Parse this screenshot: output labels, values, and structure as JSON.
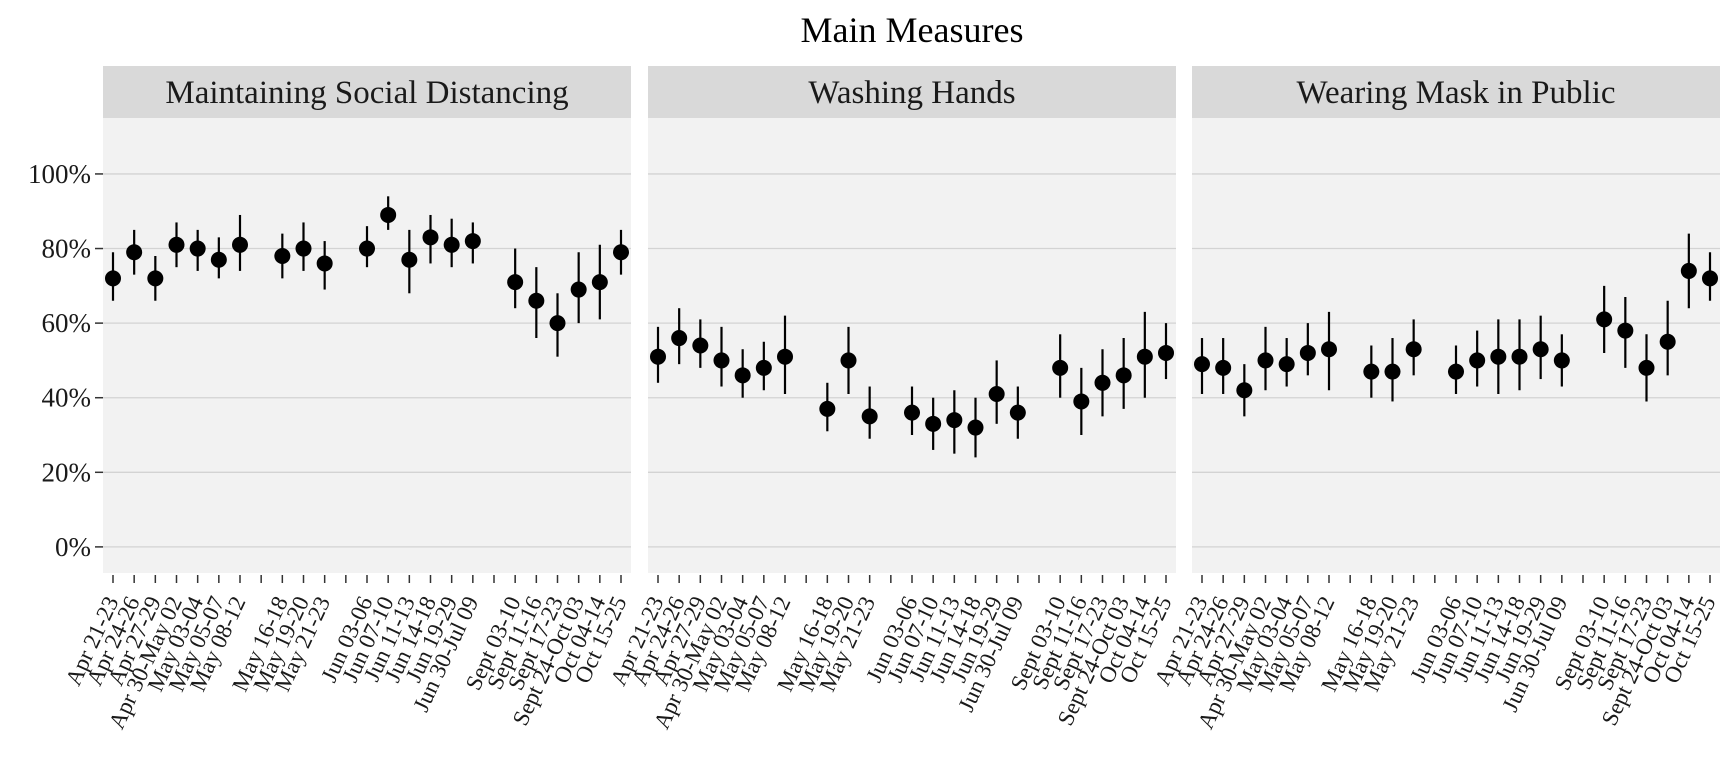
{
  "chart_data": {
    "type": "scatter",
    "title": "Main Measures",
    "xlabel": "",
    "ylabel": "",
    "ylim": [
      -0.07,
      1.15
    ],
    "y_ticks": [
      0,
      0.2,
      0.4,
      0.6,
      0.8,
      1.0
    ],
    "y_tick_labels": [
      "0%",
      "20%",
      "40%",
      "60%",
      "80%",
      "100%"
    ],
    "grid": true,
    "legend": "none",
    "point_color": "#000000",
    "panel_background": "#f2f2f2",
    "strip_background": "#d9d9d9",
    "gridline_color": "#d3d3d3",
    "x_slots": [
      "Apr 21-23",
      "Apr 24-26",
      "Apr 27-29",
      "Apr 30-May 02",
      "May 03-04",
      "May 05-07",
      "May 08-12",
      "",
      "May 16-18",
      "May 19-20",
      "May 21-23",
      "",
      "Jun 03-06",
      "Jun 07-10",
      "Jun 11-13",
      "Jun 14-18",
      "Jun 19-29",
      "Jun 30-Jul 09",
      "",
      "Sept 03-10",
      "Sept 11-16",
      "Sept 17-23",
      "Sept 24-Oct 03",
      "Oct 04-14",
      "Oct 15-25"
    ],
    "panels": [
      {
        "name": "Maintaining Social Distancing",
        "points": [
          {
            "slot": 0,
            "y": 0.72,
            "lo": 0.66,
            "hi": 0.79
          },
          {
            "slot": 1,
            "y": 0.79,
            "lo": 0.73,
            "hi": 0.85
          },
          {
            "slot": 2,
            "y": 0.72,
            "lo": 0.66,
            "hi": 0.78
          },
          {
            "slot": 3,
            "y": 0.81,
            "lo": 0.75,
            "hi": 0.87
          },
          {
            "slot": 4,
            "y": 0.8,
            "lo": 0.74,
            "hi": 0.85
          },
          {
            "slot": 5,
            "y": 0.77,
            "lo": 0.72,
            "hi": 0.83
          },
          {
            "slot": 6,
            "y": 0.81,
            "lo": 0.74,
            "hi": 0.89
          },
          {
            "slot": 8,
            "y": 0.78,
            "lo": 0.72,
            "hi": 0.84
          },
          {
            "slot": 9,
            "y": 0.8,
            "lo": 0.74,
            "hi": 0.87
          },
          {
            "slot": 10,
            "y": 0.76,
            "lo": 0.69,
            "hi": 0.82
          },
          {
            "slot": 12,
            "y": 0.8,
            "lo": 0.75,
            "hi": 0.86
          },
          {
            "slot": 13,
            "y": 0.89,
            "lo": 0.85,
            "hi": 0.94
          },
          {
            "slot": 14,
            "y": 0.77,
            "lo": 0.68,
            "hi": 0.85
          },
          {
            "slot": 15,
            "y": 0.83,
            "lo": 0.76,
            "hi": 0.89
          },
          {
            "slot": 16,
            "y": 0.81,
            "lo": 0.75,
            "hi": 0.88
          },
          {
            "slot": 17,
            "y": 0.82,
            "lo": 0.76,
            "hi": 0.87
          },
          {
            "slot": 19,
            "y": 0.71,
            "lo": 0.64,
            "hi": 0.8
          },
          {
            "slot": 20,
            "y": 0.66,
            "lo": 0.56,
            "hi": 0.75
          },
          {
            "slot": 21,
            "y": 0.6,
            "lo": 0.51,
            "hi": 0.68
          },
          {
            "slot": 22,
            "y": 0.69,
            "lo": 0.6,
            "hi": 0.79
          },
          {
            "slot": 23,
            "y": 0.71,
            "lo": 0.61,
            "hi": 0.81
          },
          {
            "slot": 24,
            "y": 0.79,
            "lo": 0.73,
            "hi": 0.85
          }
        ]
      },
      {
        "name": "Washing Hands",
        "points": [
          {
            "slot": 0,
            "y": 0.51,
            "lo": 0.44,
            "hi": 0.59
          },
          {
            "slot": 1,
            "y": 0.56,
            "lo": 0.49,
            "hi": 0.64
          },
          {
            "slot": 2,
            "y": 0.54,
            "lo": 0.48,
            "hi": 0.61
          },
          {
            "slot": 3,
            "y": 0.5,
            "lo": 0.43,
            "hi": 0.59
          },
          {
            "slot": 4,
            "y": 0.46,
            "lo": 0.4,
            "hi": 0.53
          },
          {
            "slot": 5,
            "y": 0.48,
            "lo": 0.42,
            "hi": 0.55
          },
          {
            "slot": 6,
            "y": 0.51,
            "lo": 0.41,
            "hi": 0.62
          },
          {
            "slot": 8,
            "y": 0.37,
            "lo": 0.31,
            "hi": 0.44
          },
          {
            "slot": 9,
            "y": 0.5,
            "lo": 0.41,
            "hi": 0.59
          },
          {
            "slot": 10,
            "y": 0.35,
            "lo": 0.29,
            "hi": 0.43
          },
          {
            "slot": 12,
            "y": 0.36,
            "lo": 0.3,
            "hi": 0.43
          },
          {
            "slot": 13,
            "y": 0.33,
            "lo": 0.26,
            "hi": 0.4
          },
          {
            "slot": 14,
            "y": 0.34,
            "lo": 0.25,
            "hi": 0.42
          },
          {
            "slot": 15,
            "y": 0.32,
            "lo": 0.24,
            "hi": 0.4
          },
          {
            "slot": 16,
            "y": 0.41,
            "lo": 0.33,
            "hi": 0.5
          },
          {
            "slot": 17,
            "y": 0.36,
            "lo": 0.29,
            "hi": 0.43
          },
          {
            "slot": 19,
            "y": 0.48,
            "lo": 0.4,
            "hi": 0.57
          },
          {
            "slot": 20,
            "y": 0.39,
            "lo": 0.3,
            "hi": 0.48
          },
          {
            "slot": 21,
            "y": 0.44,
            "lo": 0.35,
            "hi": 0.53
          },
          {
            "slot": 22,
            "y": 0.46,
            "lo": 0.37,
            "hi": 0.56
          },
          {
            "slot": 23,
            "y": 0.51,
            "lo": 0.4,
            "hi": 0.63
          },
          {
            "slot": 24,
            "y": 0.52,
            "lo": 0.45,
            "hi": 0.6
          }
        ]
      },
      {
        "name": "Wearing Mask in Public",
        "points": [
          {
            "slot": 0,
            "y": 0.49,
            "lo": 0.41,
            "hi": 0.56
          },
          {
            "slot": 1,
            "y": 0.48,
            "lo": 0.41,
            "hi": 0.56
          },
          {
            "slot": 2,
            "y": 0.42,
            "lo": 0.35,
            "hi": 0.49
          },
          {
            "slot": 3,
            "y": 0.5,
            "lo": 0.42,
            "hi": 0.59
          },
          {
            "slot": 4,
            "y": 0.49,
            "lo": 0.43,
            "hi": 0.56
          },
          {
            "slot": 5,
            "y": 0.52,
            "lo": 0.46,
            "hi": 0.6
          },
          {
            "slot": 6,
            "y": 0.53,
            "lo": 0.42,
            "hi": 0.63
          },
          {
            "slot": 8,
            "y": 0.47,
            "lo": 0.4,
            "hi": 0.54
          },
          {
            "slot": 9,
            "y": 0.47,
            "lo": 0.39,
            "hi": 0.56
          },
          {
            "slot": 10,
            "y": 0.53,
            "lo": 0.46,
            "hi": 0.61
          },
          {
            "slot": 12,
            "y": 0.47,
            "lo": 0.41,
            "hi": 0.54
          },
          {
            "slot": 13,
            "y": 0.5,
            "lo": 0.43,
            "hi": 0.58
          },
          {
            "slot": 14,
            "y": 0.51,
            "lo": 0.41,
            "hi": 0.61
          },
          {
            "slot": 15,
            "y": 0.51,
            "lo": 0.42,
            "hi": 0.61
          },
          {
            "slot": 16,
            "y": 0.53,
            "lo": 0.45,
            "hi": 0.62
          },
          {
            "slot": 17,
            "y": 0.5,
            "lo": 0.43,
            "hi": 0.57
          },
          {
            "slot": 19,
            "y": 0.61,
            "lo": 0.52,
            "hi": 0.7
          },
          {
            "slot": 20,
            "y": 0.58,
            "lo": 0.48,
            "hi": 0.67
          },
          {
            "slot": 21,
            "y": 0.48,
            "lo": 0.39,
            "hi": 0.57
          },
          {
            "slot": 22,
            "y": 0.55,
            "lo": 0.46,
            "hi": 0.66
          },
          {
            "slot": 23,
            "y": 0.74,
            "lo": 0.64,
            "hi": 0.84
          },
          {
            "slot": 24,
            "y": 0.72,
            "lo": 0.66,
            "hi": 0.79
          }
        ]
      }
    ]
  }
}
